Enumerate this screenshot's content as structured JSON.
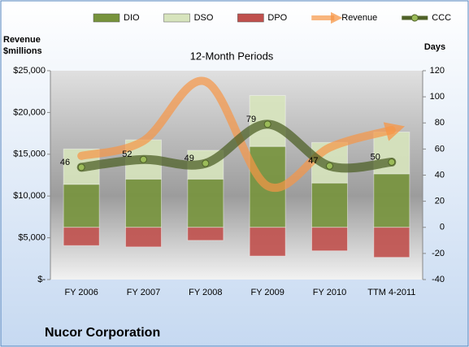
{
  "chart_data": {
    "type": "bar",
    "title": "12-Month Periods",
    "y_label": "Revenue $millions",
    "y2_label": "Days",
    "footer": "Nucor Corporation",
    "categories": [
      "FY 2006",
      "FY 2007",
      "FY 2008",
      "FY 2009",
      "FY 2010",
      "TTM 4-2011"
    ],
    "series": [
      {
        "name": "DIO",
        "type": "bar",
        "axis": "y2",
        "color": "#77933c",
        "values": [
          33,
          37,
          37,
          62,
          34,
          41
        ]
      },
      {
        "name": "DSO",
        "type": "bar",
        "axis": "y2",
        "color": "#d7e4bd",
        "values": [
          27,
          30,
          22,
          39,
          31,
          32
        ]
      },
      {
        "name": "DPO",
        "type": "bar",
        "axis": "y2",
        "color": "#c0504d",
        "values": [
          -14,
          -15,
          -10,
          -22,
          -18,
          -23
        ]
      },
      {
        "name": "Revenue",
        "type": "line",
        "axis": "y",
        "color": "#f79646",
        "values": [
          14800,
          16600,
          23700,
          11200,
          15800,
          17900
        ]
      },
      {
        "name": "CCC",
        "type": "line",
        "axis": "y2",
        "color": "#4f6228",
        "values": [
          46,
          52,
          49,
          79,
          47,
          50
        ]
      }
    ],
    "ylim": [
      0,
      25000
    ],
    "yticks": [
      {
        "value": 0,
        "label": "$-"
      },
      {
        "value": 5000,
        "label": "$5,000"
      },
      {
        "value": 10000,
        "label": "$10,000"
      },
      {
        "value": 15000,
        "label": "$15,000"
      },
      {
        "value": 20000,
        "label": "$20,000"
      },
      {
        "value": 25000,
        "label": "$25,000"
      }
    ],
    "y2lim": [
      -40,
      120
    ],
    "y2ticks": [
      -40,
      -20,
      0,
      20,
      40,
      60,
      80,
      100,
      120
    ],
    "legend": "top"
  }
}
